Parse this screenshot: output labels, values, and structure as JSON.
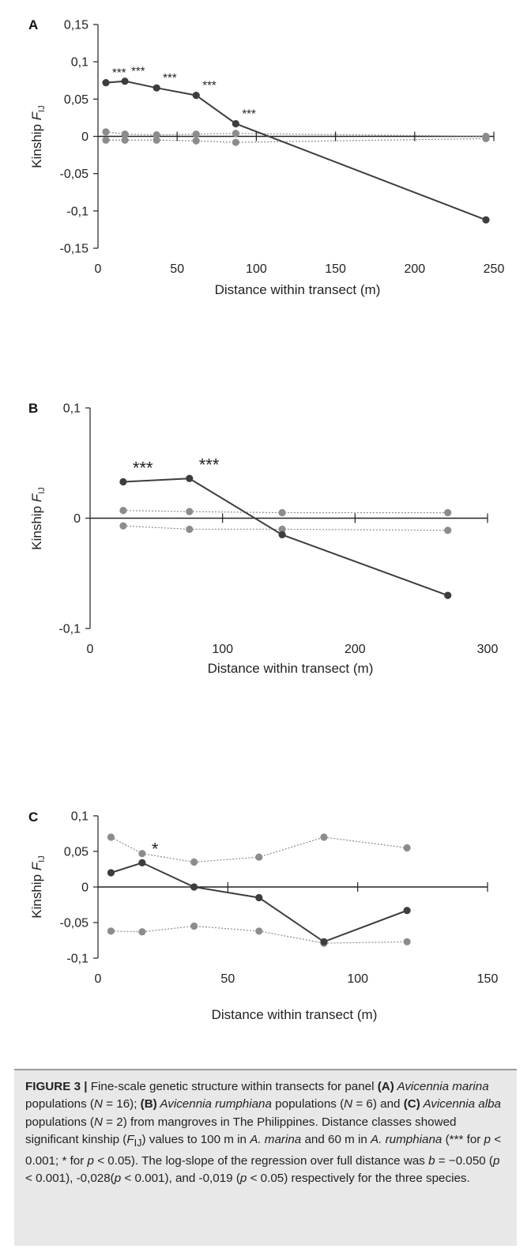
{
  "chart_data": [
    {
      "type": "line",
      "panel": "A",
      "xlabel": "Distance within transect (m)",
      "ylabel_main": "Kinship ",
      "ylabel_italic": "F",
      "ylabel_sub": "IJ",
      "xlim": [
        0,
        250
      ],
      "ylim": [
        -0.15,
        0.15
      ],
      "xticks": [
        0,
        50,
        100,
        150,
        200,
        250
      ],
      "xtick_labels": [
        "0",
        "50",
        "100",
        "150",
        "200",
        "250"
      ],
      "yticks": [
        0.15,
        0.1,
        0.05,
        0,
        -0.05,
        -0.1,
        -0.15
      ],
      "ytick_labels": [
        "0,15",
        "0,1",
        "0,05",
        "0",
        "-0,05",
        "-0,1",
        "-0,15"
      ],
      "zero_line_ticks": [
        50,
        100,
        150,
        200,
        250
      ],
      "kinship": {
        "x": [
          5,
          17,
          37,
          62,
          87,
          245
        ],
        "y": [
          0.072,
          0.074,
          0.065,
          0.055,
          0.017,
          -0.112
        ],
        "sig": [
          "***",
          "***",
          "***",
          "***",
          "***",
          ""
        ]
      },
      "upper_ci": {
        "x": [
          5,
          17,
          37,
          62,
          87,
          245
        ],
        "y": [
          0.006,
          0.003,
          0.002,
          0.003,
          0.004,
          0.0
        ]
      },
      "lower_ci": {
        "x": [
          5,
          17,
          37,
          62,
          87,
          245
        ],
        "y": [
          -0.005,
          -0.005,
          -0.005,
          -0.006,
          -0.008,
          -0.003
        ]
      },
      "sig_font_size": 15
    },
    {
      "type": "line",
      "panel": "B",
      "xlabel": "Distance within transect (m)",
      "ylabel_main": "Kinship ",
      "ylabel_italic": "F",
      "ylabel_sub": "IJ",
      "xlim": [
        0,
        300
      ],
      "ylim": [
        -0.1,
        0.1
      ],
      "xticks": [
        0,
        100,
        200,
        300
      ],
      "xtick_labels": [
        "0",
        "100",
        "200",
        "300"
      ],
      "yticks": [
        0.1,
        0,
        -0.1
      ],
      "ytick_labels": [
        "0,1",
        "0",
        "-0,1"
      ],
      "zero_line_ticks": [
        100,
        200,
        300
      ],
      "kinship": {
        "x": [
          25,
          75,
          145,
          270
        ],
        "y": [
          0.033,
          0.036,
          -0.015,
          -0.07
        ],
        "sig": [
          "***",
          "***",
          "",
          ""
        ]
      },
      "upper_ci": {
        "x": [
          25,
          75,
          145,
          270
        ],
        "y": [
          0.007,
          0.006,
          0.005,
          0.005
        ]
      },
      "lower_ci": {
        "x": [
          25,
          75,
          145,
          270
        ],
        "y": [
          -0.007,
          -0.01,
          -0.01,
          -0.011
        ]
      },
      "sig_font_size": 22
    },
    {
      "type": "line",
      "panel": "C",
      "xlabel": "Distance within transect (m)",
      "ylabel_main": "Kinship ",
      "ylabel_italic": "F",
      "ylabel_sub": "IJ",
      "xlim": [
        0,
        150
      ],
      "ylim": [
        -0.1,
        0.1
      ],
      "xticks": [
        0,
        50,
        100,
        150
      ],
      "xtick_labels": [
        "0",
        "50",
        "100",
        "150"
      ],
      "yticks": [
        0.1,
        0.05,
        0,
        -0.05,
        -0.1
      ],
      "ytick_labels": [
        "0,1",
        "0,05",
        "0",
        "-0,05",
        "-0,1"
      ],
      "zero_line_ticks": [
        50,
        100,
        150
      ],
      "kinship": {
        "x": [
          5,
          17,
          37,
          62,
          87,
          119
        ],
        "y": [
          0.02,
          0.034,
          0.0,
          -0.015,
          -0.077,
          -0.033
        ],
        "sig": [
          "",
          "*",
          "",
          "",
          "",
          ""
        ]
      },
      "upper_ci": {
        "x": [
          5,
          17,
          37,
          62,
          87,
          119
        ],
        "y": [
          0.07,
          0.047,
          0.035,
          0.042,
          0.07,
          0.055
        ]
      },
      "lower_ci": {
        "x": [
          5,
          17,
          37,
          62,
          87,
          119
        ],
        "y": [
          -0.062,
          -0.063,
          -0.055,
          -0.062,
          -0.079,
          -0.077
        ]
      },
      "sig_font_size": 22
    }
  ],
  "colors": {
    "kinship": "#3d3d3d",
    "confidence": "#8c8c8c",
    "axis": "#222222",
    "caption_bg": "#e8e8e8",
    "caption_rule": "#9a9a9a"
  },
  "caption": {
    "figure_label": "FIGURE 3 |",
    "t1": " Fine-scale genetic structure within transects for panel ",
    "b_a": "(A)",
    "i_a": " Avicennia marina",
    "t2": " populations (",
    "i_n1": "N",
    "t3": " = 16); ",
    "b_b": "(B)",
    "i_b": " Avicennia rumphiana",
    "t4": " populations (",
    "i_n2": "N",
    "t5": " = 6) and ",
    "b_c": "(C)",
    "i_c": " Avicennia alba",
    "t6": " populations (",
    "i_n3": "N",
    "t7": " = 2) from mangroves in The Philippines. Distance classes showed significant kinship (",
    "i_f": "F",
    "sub_ij": "IJ",
    "t8": ") values to 100 m in ",
    "i_am": "A. marina",
    "t9": " and 60 m in ",
    "i_ar": "A. rumphiana",
    "t10": " (*** for ",
    "i_p1": "p",
    "t11": " < 0.001; * for ",
    "i_p2": "p",
    "t12": " < 0.05). The log-slope of the regression over full distance was ",
    "i_b2": "b",
    "t13": " = −0.050 (",
    "i_p3": "p",
    "t14": " < 0.001), -0,028(",
    "i_p4": "p",
    "t15": " < 0.001), and -0,019 (",
    "i_p5": "p",
    "t16": " < 0.05) respectively for the three species."
  }
}
